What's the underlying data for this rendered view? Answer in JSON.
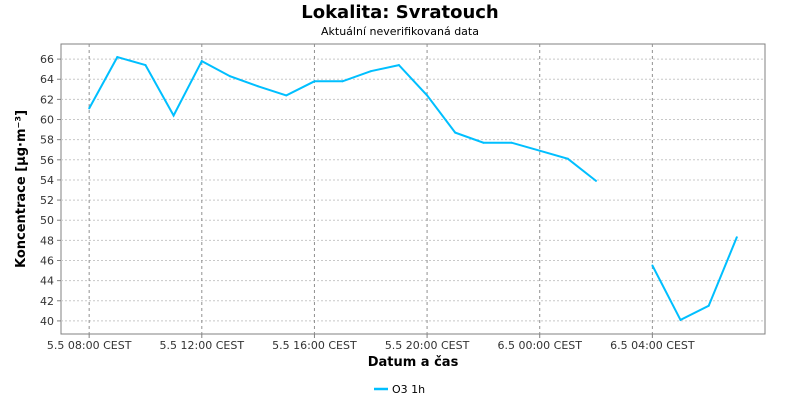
{
  "chart_data": {
    "type": "line",
    "title": "Lokalita: Svratouch",
    "subtitle": "Aktuální neverifikovaná data",
    "xlabel": "Datum a čas",
    "ylabel": "Koncentrace [µg·m⁻³]",
    "x_unit": "hours after 5.5 08:00 CEST",
    "x_ticks": [
      {
        "hour": 0,
        "label": "5.5 08:00 CEST"
      },
      {
        "hour": 4,
        "label": "5.5 12:00 CEST"
      },
      {
        "hour": 8,
        "label": "5.5 16:00 CEST"
      },
      {
        "hour": 12,
        "label": "5.5 20:00 CEST"
      },
      {
        "hour": 16,
        "label": "6.5 00:00 CEST"
      },
      {
        "hour": 20,
        "label": "6.5 04:00 CEST"
      }
    ],
    "y_ticks": [
      40,
      42,
      44,
      46,
      48,
      50,
      52,
      54,
      56,
      58,
      60,
      62,
      64,
      66
    ],
    "xlim": [
      -1,
      24
    ],
    "ylim": [
      38.7,
      67.5
    ],
    "grid": true,
    "legend_position": "bottom",
    "series": [
      {
        "name": "O3 1h",
        "color": "#00BFFF",
        "segments": [
          [
            {
              "x": 0,
              "y": 61.1
            },
            {
              "x": 1,
              "y": 66.2
            },
            {
              "x": 2,
              "y": 65.4
            },
            {
              "x": 3,
              "y": 60.4
            },
            {
              "x": 4,
              "y": 65.8
            },
            {
              "x": 5,
              "y": 64.3
            },
            {
              "x": 6,
              "y": 63.3
            },
            {
              "x": 7,
              "y": 62.4
            },
            {
              "x": 8,
              "y": 63.8
            },
            {
              "x": 9,
              "y": 63.8
            },
            {
              "x": 10,
              "y": 64.8
            },
            {
              "x": 11,
              "y": 65.4
            },
            {
              "x": 12,
              "y": 62.4
            },
            {
              "x": 13,
              "y": 58.7
            },
            {
              "x": 14,
              "y": 57.7
            },
            {
              "x": 15,
              "y": 57.7
            },
            {
              "x": 16,
              "y": 56.9
            },
            {
              "x": 17,
              "y": 56.1
            },
            {
              "x": 18,
              "y": 53.9
            }
          ],
          [
            {
              "x": 20,
              "y": 45.5
            },
            {
              "x": 21,
              "y": 40.1
            },
            {
              "x": 22,
              "y": 41.5
            },
            {
              "x": 23,
              "y": 48.3
            }
          ]
        ]
      }
    ]
  }
}
